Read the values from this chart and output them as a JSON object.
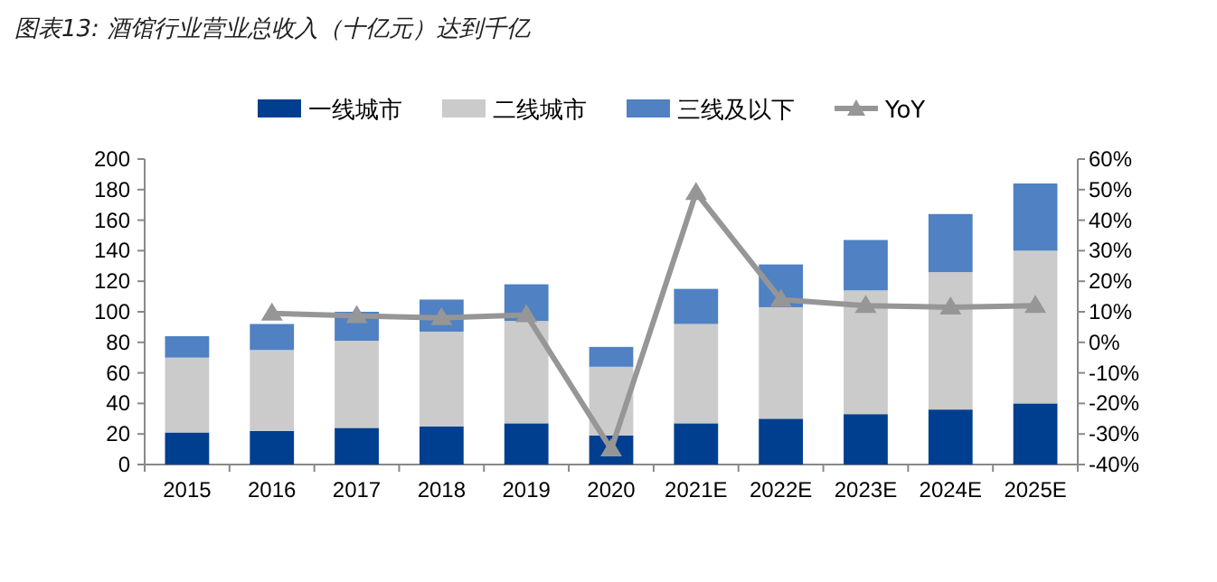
{
  "chart_data": {
    "type": "bar",
    "title": "图表13: 酒馆行业营业总收入（十亿元）达到千亿",
    "categories": [
      "2015",
      "2016",
      "2017",
      "2018",
      "2019",
      "2020",
      "2021E",
      "2022E",
      "2023E",
      "2024E",
      "2025E"
    ],
    "stacked": true,
    "series": [
      {
        "name": "一线城市",
        "color": "#003f8f",
        "values": [
          21,
          22,
          24,
          25,
          27,
          19,
          27,
          30,
          33,
          36,
          40
        ]
      },
      {
        "name": "二线城市",
        "color": "#cbcbcb",
        "values": [
          49,
          53,
          57,
          62,
          67,
          45,
          65,
          73,
          81,
          90,
          100
        ]
      },
      {
        "name": "三线及以下",
        "color": "#4f81c3",
        "values": [
          14,
          17,
          19,
          21,
          24,
          13,
          23,
          28,
          33,
          38,
          44
        ]
      },
      {
        "name": "YoY",
        "type": "line",
        "axis": "y2",
        "color": "#969696",
        "marker": "triangle",
        "values": [
          null,
          9.5,
          8.7,
          8,
          9,
          -35,
          49,
          14,
          12,
          11.5,
          12
        ]
      }
    ],
    "ylim": [
      0,
      200
    ],
    "yticks": [
      0,
      20,
      40,
      60,
      80,
      100,
      120,
      140,
      160,
      180,
      200
    ],
    "y2lim": [
      -40,
      60
    ],
    "y2ticks": [
      {
        "value": -40,
        "label": "-40%"
      },
      {
        "value": -30,
        "label": "-30%"
      },
      {
        "value": -20,
        "label": "-20%"
      },
      {
        "value": -10,
        "label": "-10%"
      },
      {
        "value": 0,
        "label": "0%"
      },
      {
        "value": 10,
        "label": "10%"
      },
      {
        "value": 20,
        "label": "20%"
      },
      {
        "value": 30,
        "label": "30%"
      },
      {
        "value": 40,
        "label": "40%"
      },
      {
        "value": 50,
        "label": "50%"
      },
      {
        "value": 60,
        "label": "60%"
      }
    ],
    "legend": "top",
    "grid": false
  }
}
